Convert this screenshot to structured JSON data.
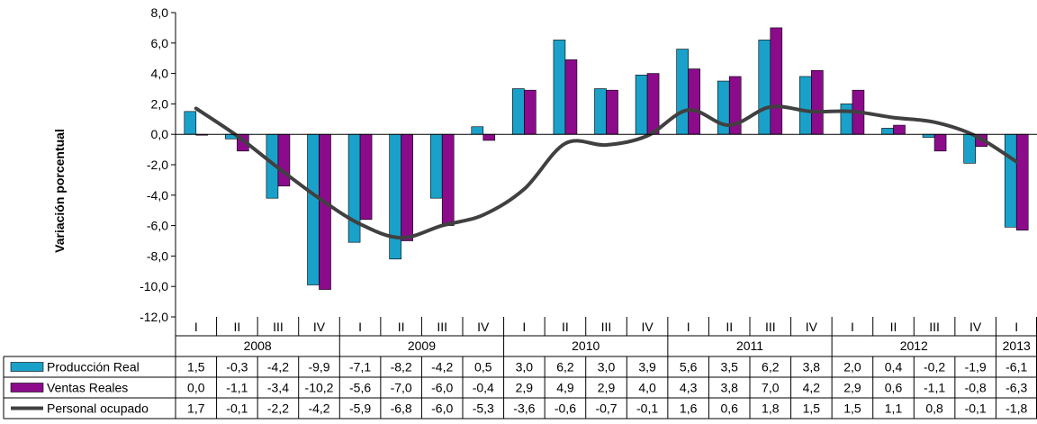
{
  "chart_data": {
    "type": "bar",
    "ylabel": "Variación porcentual",
    "ylim": [
      -12,
      8
    ],
    "yticks": [
      "8,0",
      "6,0",
      "4,0",
      "2,0",
      "0,0",
      "-2,0",
      "-4,0",
      "-6,0",
      "-8,0",
      "-10,0",
      "-12,0"
    ],
    "quarters": [
      "I",
      "II",
      "III",
      "IV",
      "I",
      "II",
      "III",
      "IV",
      "I",
      "II",
      "III",
      "IV",
      "I",
      "II",
      "III",
      "IV",
      "I",
      "II",
      "III",
      "IV",
      "I"
    ],
    "years": [
      {
        "label": "2008",
        "count": 4
      },
      {
        "label": "2009",
        "count": 4
      },
      {
        "label": "2010",
        "count": 4
      },
      {
        "label": "2011",
        "count": 4
      },
      {
        "label": "2012",
        "count": 4
      },
      {
        "label": "2013",
        "count": 1
      }
    ],
    "legend": "data-table",
    "series": [
      {
        "name": "Producción Real",
        "kind": "bar",
        "color": "#1aa1c9",
        "values": [
          1.5,
          -0.3,
          -4.2,
          -9.9,
          -7.1,
          -8.2,
          -4.2,
          0.5,
          3.0,
          6.2,
          3.0,
          3.9,
          5.6,
          3.5,
          6.2,
          3.8,
          2.0,
          0.4,
          -0.2,
          -1.9,
          -6.1
        ],
        "labels": [
          "1,5",
          "-0,3",
          "-4,2",
          "-9,9",
          "-7,1",
          "-8,2",
          "-4,2",
          "0,5",
          "3,0",
          "6,2",
          "3,0",
          "3,9",
          "5,6",
          "3,5",
          "6,2",
          "3,8",
          "2,0",
          "0,4",
          "-0,2",
          "-1,9",
          "-6,1"
        ]
      },
      {
        "name": "Ventas Reales",
        "kind": "bar",
        "color": "#8b0b8b",
        "values": [
          0.0,
          -1.1,
          -3.4,
          -10.2,
          -5.6,
          -7.0,
          -6.0,
          -0.4,
          2.9,
          4.9,
          2.9,
          4.0,
          4.3,
          3.8,
          7.0,
          4.2,
          2.9,
          0.6,
          -1.1,
          -0.8,
          -6.3
        ],
        "labels": [
          "0,0",
          "-1,1",
          "-3,4",
          "-10,2",
          "-5,6",
          "-7,0",
          "-6,0",
          "-0,4",
          "2,9",
          "4,9",
          "2,9",
          "4,0",
          "4,3",
          "3,8",
          "7,0",
          "4,2",
          "2,9",
          "0,6",
          "-1,1",
          "-0,8",
          "-6,3"
        ]
      },
      {
        "name": "Personal ocupado",
        "kind": "line",
        "color": "#404040",
        "values": [
          1.7,
          -0.1,
          -2.2,
          -4.2,
          -5.9,
          -6.8,
          -6.0,
          -5.3,
          -3.6,
          -0.6,
          -0.7,
          -0.1,
          1.6,
          0.6,
          1.8,
          1.5,
          1.5,
          1.1,
          0.8,
          -0.1,
          -1.8
        ],
        "labels": [
          "1,7",
          "-0,1",
          "-2,2",
          "-4,2",
          "-5,9",
          "-6,8",
          "-6,0",
          "-5,3",
          "-3,6",
          "-0,6",
          "-0,7",
          "-0,1",
          "1,6",
          "0,6",
          "1,8",
          "1,5",
          "1,5",
          "1,1",
          "0,8",
          "-0,1",
          "-1,8"
        ]
      }
    ]
  }
}
